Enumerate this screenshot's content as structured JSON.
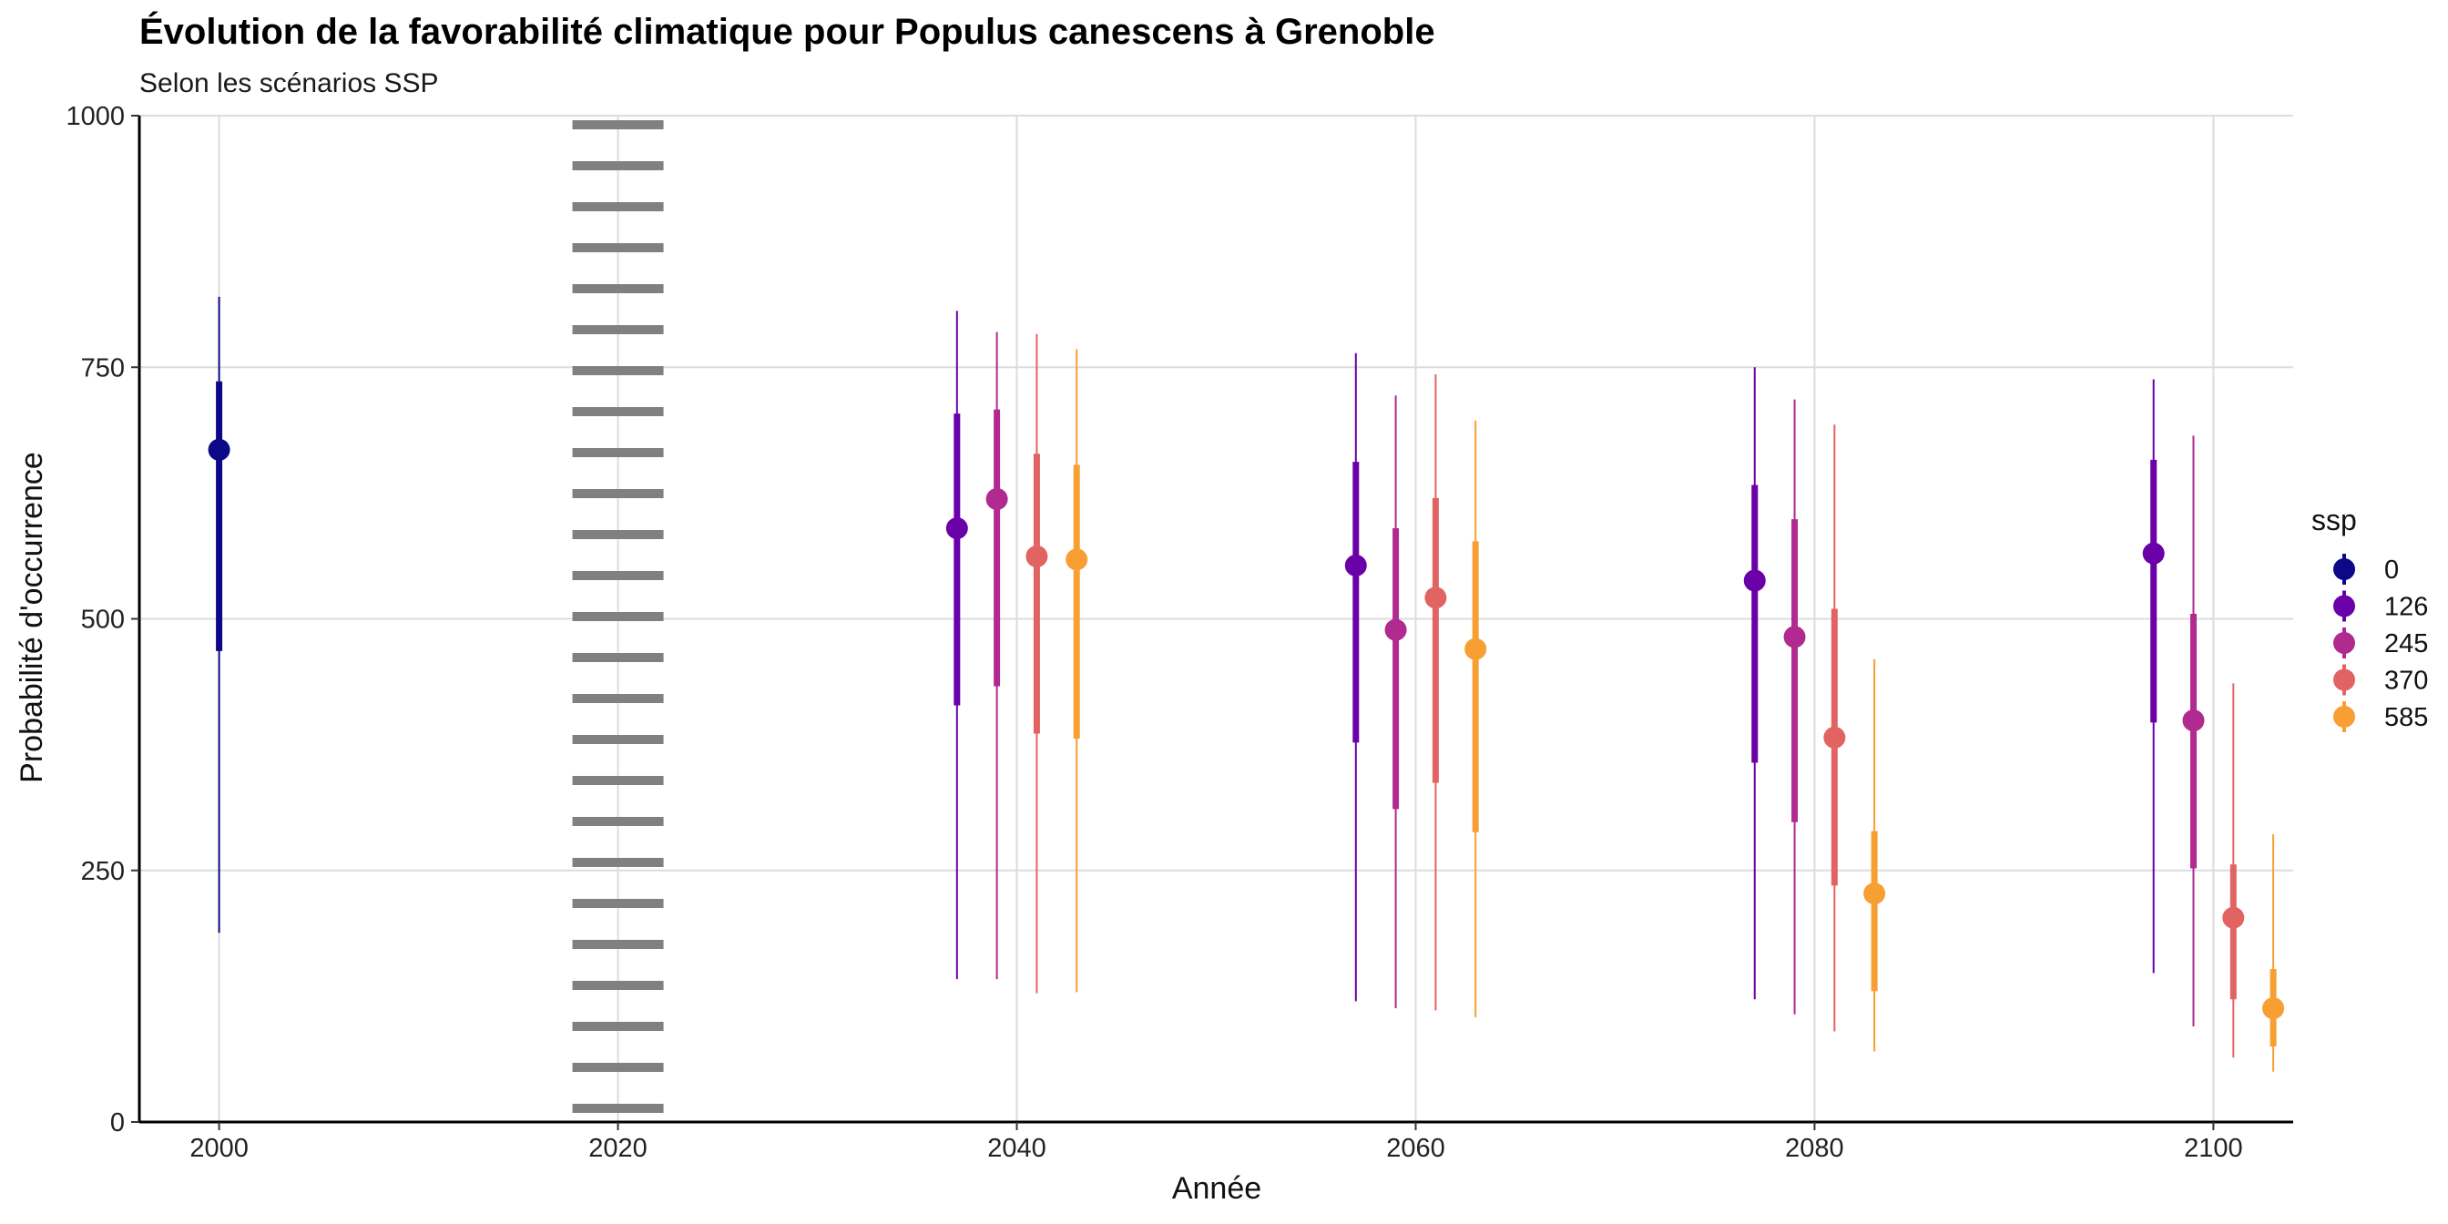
{
  "chart_data": {
    "type": "pointrange",
    "title": "Évolution de la favorabilité climatique pour Populus canescens à Grenoble",
    "subtitle": "Selon les scénarios SSP",
    "xlabel": "Année",
    "ylabel": "Probabilité d'occurrence",
    "xlim": [
      1996,
      2104
    ],
    "ylim": [
      0,
      1000
    ],
    "x_ticks": [
      2000,
      2020,
      2040,
      2060,
      2080,
      2100
    ],
    "y_ticks": [
      0,
      250,
      500,
      750,
      1000
    ],
    "grid": true,
    "reference_line": {
      "x": 2020,
      "style": "dotted",
      "color": "#808080"
    },
    "legend": {
      "title": "ssp",
      "placement": "right",
      "entries": [
        {
          "label": "0",
          "color": "#0D0887"
        },
        {
          "label": "126",
          "color": "#6A00A8"
        },
        {
          "label": "245",
          "color": "#B12A90"
        },
        {
          "label": "370",
          "color": "#E16462"
        },
        {
          "label": "585",
          "color": "#F89F33"
        }
      ]
    },
    "series": [
      {
        "name": "0",
        "color": "#0D0887",
        "points": [
          {
            "x": 2000,
            "y": 668,
            "inner": [
              468,
              736
            ],
            "outer": [
              188,
              820
            ]
          }
        ]
      },
      {
        "name": "126",
        "color": "#6A00A8",
        "points": [
          {
            "x": 2037,
            "y": 590,
            "inner": [
              414,
              704
            ],
            "outer": [
              142,
              806
            ]
          },
          {
            "x": 2057,
            "y": 553,
            "inner": [
              377,
              656
            ],
            "outer": [
              120,
              764
            ]
          },
          {
            "x": 2077,
            "y": 538,
            "inner": [
              357,
              633
            ],
            "outer": [
              122,
              750
            ]
          },
          {
            "x": 2097,
            "y": 565,
            "inner": [
              397,
              658
            ],
            "outer": [
              148,
              738
            ]
          }
        ]
      },
      {
        "name": "245",
        "color": "#B12A90",
        "points": [
          {
            "x": 2039,
            "y": 619,
            "inner": [
              433,
              708
            ],
            "outer": [
              142,
              785
            ]
          },
          {
            "x": 2059,
            "y": 489,
            "inner": [
              311,
              590
            ],
            "outer": [
              113,
              722
            ]
          },
          {
            "x": 2079,
            "y": 482,
            "inner": [
              298,
              599
            ],
            "outer": [
              107,
              718
            ]
          },
          {
            "x": 2099,
            "y": 399,
            "inner": [
              252,
              505
            ],
            "outer": [
              95,
              682
            ]
          }
        ]
      },
      {
        "name": "370",
        "color": "#E16462",
        "points": [
          {
            "x": 2041,
            "y": 562,
            "inner": [
              386,
              664
            ],
            "outer": [
              128,
              783
            ]
          },
          {
            "x": 2061,
            "y": 521,
            "inner": [
              337,
              620
            ],
            "outer": [
              111,
              743
            ]
          },
          {
            "x": 2081,
            "y": 382,
            "inner": [
              235,
              510
            ],
            "outer": [
              90,
              693
            ]
          },
          {
            "x": 2101,
            "y": 203,
            "inner": [
              122,
              256
            ],
            "outer": [
              64,
              436
            ]
          }
        ]
      },
      {
        "name": "585",
        "color": "#F89F33",
        "points": [
          {
            "x": 2043,
            "y": 559,
            "inner": [
              381,
              653
            ],
            "outer": [
              129,
              768
            ]
          },
          {
            "x": 2063,
            "y": 470,
            "inner": [
              288,
              577
            ],
            "outer": [
              104,
              697
            ]
          },
          {
            "x": 2083,
            "y": 227,
            "inner": [
              130,
              289
            ],
            "outer": [
              70,
              460
            ]
          },
          {
            "x": 2103,
            "y": 113,
            "inner": [
              75,
              152
            ],
            "outer": [
              50,
              286
            ]
          }
        ]
      }
    ]
  }
}
